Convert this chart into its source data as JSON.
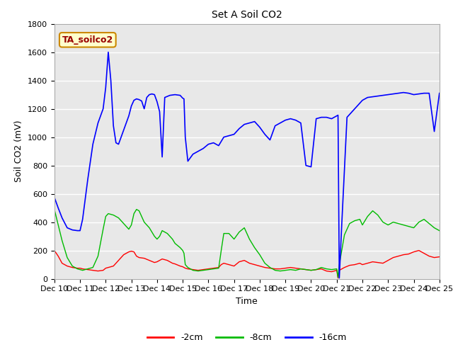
{
  "title": "Set A Soil CO2",
  "ylabel": "Soil CO2 (mV)",
  "xlabel": "Time",
  "ylim": [
    0,
    1800
  ],
  "xlim": [
    0,
    15
  ],
  "x_labels": [
    "Dec 10",
    "Dec 11",
    "Dec 12",
    "Dec 13",
    "Dec 14",
    "Dec 15",
    "Dec 16",
    "Dec 17",
    "Dec 18",
    "Dec 19",
    "Dec 20",
    "Dec 21",
    "Dec 22",
    "Dec 23",
    "Dec 24",
    "Dec 25"
  ],
  "legend_label": "TA_soilco2",
  "legend_bg": "#ffffcc",
  "legend_edge": "#cc8800",
  "series_labels": [
    "-2cm",
    "-8cm",
    "-16cm"
  ],
  "series_colors": [
    "#ff0000",
    "#00bb00",
    "#0000ff"
  ],
  "background_color": "#e8e8e8",
  "title_fontsize": 10,
  "axis_fontsize": 9,
  "tick_fontsize": 8,
  "red_x": [
    0,
    0.15,
    0.3,
    0.5,
    0.7,
    0.9,
    1.0,
    1.1,
    1.3,
    1.5,
    1.7,
    1.9,
    2.0,
    2.1,
    2.3,
    2.5,
    2.7,
    2.9,
    3.0,
    3.1,
    3.2,
    3.3,
    3.5,
    3.7,
    3.9,
    4.0,
    4.1,
    4.2,
    4.4,
    4.6,
    4.7,
    4.9,
    5.0,
    5.05,
    5.1,
    5.2,
    5.4,
    5.6,
    5.8,
    6.0,
    6.2,
    6.4,
    6.5,
    6.6,
    6.8,
    7.0,
    7.2,
    7.4,
    7.6,
    7.8,
    8.0,
    8.2,
    8.4,
    8.6,
    8.8,
    9.0,
    9.2,
    9.4,
    9.6,
    9.8,
    10.0,
    10.2,
    10.4,
    10.6,
    10.8,
    11.0,
    11.05,
    11.1,
    11.3,
    11.5,
    11.7,
    11.9,
    12.0,
    12.2,
    12.4,
    12.6,
    12.8,
    13.0,
    13.2,
    13.4,
    13.6,
    13.8,
    14.0,
    14.2,
    14.4,
    14.6,
    14.8,
    15.0
  ],
  "red_y": [
    200,
    160,
    110,
    90,
    80,
    75,
    75,
    70,
    65,
    60,
    55,
    60,
    75,
    80,
    90,
    130,
    170,
    190,
    195,
    190,
    160,
    150,
    145,
    130,
    115,
    120,
    130,
    140,
    130,
    110,
    105,
    90,
    85,
    80,
    75,
    70,
    65,
    60,
    65,
    70,
    75,
    80,
    100,
    110,
    100,
    90,
    120,
    130,
    110,
    100,
    90,
    80,
    75,
    70,
    70,
    75,
    80,
    75,
    70,
    65,
    60,
    65,
    70,
    55,
    50,
    60,
    5,
    60,
    80,
    95,
    100,
    110,
    100,
    110,
    120,
    115,
    110,
    130,
    150,
    160,
    170,
    175,
    190,
    200,
    180,
    160,
    150,
    155
  ],
  "green_x": [
    0,
    0.15,
    0.3,
    0.5,
    0.7,
    0.9,
    1.0,
    1.1,
    1.3,
    1.5,
    1.7,
    1.9,
    2.0,
    2.1,
    2.3,
    2.5,
    2.7,
    2.9,
    3.0,
    3.1,
    3.2,
    3.3,
    3.5,
    3.7,
    3.9,
    4.0,
    4.1,
    4.2,
    4.4,
    4.6,
    4.7,
    4.9,
    5.0,
    5.05,
    5.1,
    5.2,
    5.4,
    5.6,
    5.8,
    6.0,
    6.2,
    6.4,
    6.5,
    6.6,
    6.8,
    7.0,
    7.2,
    7.4,
    7.6,
    7.8,
    8.0,
    8.2,
    8.4,
    8.6,
    8.8,
    9.0,
    9.2,
    9.4,
    9.6,
    9.8,
    10.0,
    10.2,
    10.4,
    10.6,
    10.8,
    11.0,
    11.05,
    11.1,
    11.3,
    11.5,
    11.7,
    11.9,
    12.0,
    12.2,
    12.4,
    12.6,
    12.8,
    13.0,
    13.2,
    13.4,
    13.6,
    13.8,
    14.0,
    14.2,
    14.4,
    14.6,
    14.8,
    15.0
  ],
  "green_y": [
    490,
    380,
    270,
    150,
    90,
    70,
    65,
    60,
    70,
    80,
    160,
    350,
    440,
    460,
    450,
    430,
    390,
    350,
    380,
    460,
    490,
    480,
    400,
    360,
    300,
    280,
    300,
    340,
    320,
    280,
    250,
    220,
    200,
    180,
    100,
    80,
    60,
    55,
    60,
    65,
    70,
    75,
    200,
    320,
    320,
    280,
    330,
    360,
    280,
    220,
    170,
    110,
    80,
    60,
    55,
    60,
    65,
    60,
    70,
    65,
    60,
    65,
    80,
    70,
    65,
    70,
    10,
    100,
    310,
    390,
    410,
    420,
    380,
    440,
    480,
    450,
    400,
    380,
    400,
    390,
    380,
    370,
    360,
    400,
    420,
    390,
    360,
    340
  ],
  "blue_x": [
    0,
    0.15,
    0.3,
    0.5,
    0.7,
    0.9,
    1.0,
    1.1,
    1.3,
    1.5,
    1.7,
    1.9,
    2.0,
    2.1,
    2.2,
    2.3,
    2.4,
    2.5,
    2.6,
    2.7,
    2.8,
    2.9,
    3.0,
    3.1,
    3.2,
    3.3,
    3.4,
    3.5,
    3.6,
    3.7,
    3.8,
    3.9,
    4.0,
    4.1,
    4.2,
    4.3,
    4.5,
    4.7,
    4.9,
    5.0,
    5.05,
    5.1,
    5.2,
    5.4,
    5.6,
    5.8,
    6.0,
    6.2,
    6.4,
    6.6,
    6.8,
    7.0,
    7.2,
    7.4,
    7.6,
    7.8,
    8.0,
    8.2,
    8.4,
    8.6,
    8.8,
    9.0,
    9.2,
    9.4,
    9.6,
    9.8,
    10.0,
    10.2,
    10.4,
    10.6,
    10.8,
    11.0,
    11.05,
    11.1,
    11.2,
    11.4,
    11.6,
    11.8,
    12.0,
    12.2,
    12.4,
    12.6,
    12.8,
    13.0,
    13.2,
    13.4,
    13.6,
    13.8,
    14.0,
    14.2,
    14.4,
    14.6,
    14.8,
    15.0
  ],
  "blue_y": [
    575,
    500,
    430,
    360,
    345,
    340,
    340,
    420,
    700,
    950,
    1100,
    1200,
    1350,
    1600,
    1400,
    1080,
    960,
    950,
    1000,
    1050,
    1100,
    1150,
    1220,
    1260,
    1270,
    1265,
    1255,
    1200,
    1280,
    1300,
    1305,
    1300,
    1250,
    1180,
    860,
    1280,
    1295,
    1300,
    1295,
    1275,
    1270,
    1000,
    830,
    880,
    900,
    920,
    950,
    960,
    940,
    1000,
    1010,
    1020,
    1060,
    1090,
    1100,
    1110,
    1070,
    1020,
    980,
    1080,
    1100,
    1120,
    1130,
    1120,
    1100,
    800,
    790,
    1130,
    1140,
    1140,
    1130,
    1150,
    1155,
    5,
    400,
    1140,
    1180,
    1220,
    1260,
    1280,
    1285,
    1290,
    1295,
    1300,
    1305,
    1310,
    1315,
    1310,
    1300,
    1305,
    1310,
    1310,
    1040,
    1310
  ]
}
